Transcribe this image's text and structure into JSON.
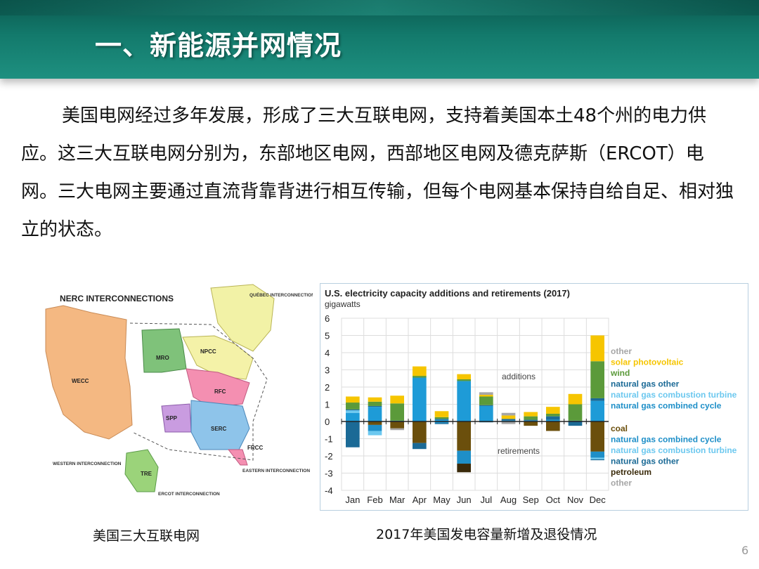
{
  "header": {
    "title": "一、新能源并网情况"
  },
  "body": {
    "paragraph": "美国电网经过多年发展，形成了三大互联电网，支持着美国本土48个州的电力供应。这三大互联电网分别为，东部地区电网，西部地区电网及德克萨斯（ERCOT）电网。三大电网主要通过直流背靠背进行相互传输，但每个电网基本保持自给自足、相对独立的状态。"
  },
  "map": {
    "title": "NERC INTERCONNECTIONS",
    "regions": [
      "WECC",
      "MRO",
      "NPCC",
      "RFC",
      "SPP",
      "SERC",
      "FRCC",
      "TRE"
    ],
    "labels": {
      "quebec": "QUÉBEC INTERCONNECTION",
      "western": "WESTERN INTERCONNECTION",
      "eastern": "EASTERN INTERCONNECTION",
      "ercot": "ERCOT INTERCONNECTION"
    },
    "caption": "美国三大互联电网"
  },
  "chart_caption": "2017年美国发电容量新增及退役情况",
  "page_number": "6",
  "chart_data": {
    "type": "bar",
    "stacked": true,
    "title": "U.S. electricity capacity additions and retirements (2017)",
    "ylabel": "gigawatts",
    "ylim": [
      -4,
      6
    ],
    "yticks": [
      6,
      5,
      4,
      3,
      2,
      1,
      0,
      -1,
      -2,
      -3,
      -4
    ],
    "grid": true,
    "annotations": [
      "additions",
      "retirements"
    ],
    "legend_placement": "right",
    "categories": [
      "Jan",
      "Feb",
      "Mar",
      "Apr",
      "May",
      "Jun",
      "Jul",
      "Aug",
      "Sep",
      "Oct",
      "Nov",
      "Dec"
    ],
    "additions": [
      {
        "name": "natural gas combined cycle",
        "color": "#1e9bd7",
        "values": [
          0.5,
          0.85,
          0,
          2.55,
          0.1,
          2.35,
          0.9,
          0.05,
          0.05,
          0.1,
          0,
          1.2
        ]
      },
      {
        "name": "natural gas combustion turbine",
        "color": "#6cc8ef",
        "values": [
          0.15,
          0,
          0,
          0,
          0,
          0,
          0,
          0,
          0,
          0,
          0,
          0
        ]
      },
      {
        "name": "natural gas other",
        "color": "#1b6a96",
        "values": [
          0.05,
          0.05,
          0.05,
          0,
          0.05,
          0,
          0.05,
          0.1,
          0.05,
          0.2,
          0.05,
          0.15
        ]
      },
      {
        "name": "wind",
        "color": "#5b9a3a",
        "values": [
          0.4,
          0.25,
          1.0,
          0.1,
          0.1,
          0.1,
          0.5,
          0,
          0.2,
          0.15,
          0.95,
          2.15
        ]
      },
      {
        "name": "solar photovoltaic",
        "color": "#f6c500",
        "values": [
          0.35,
          0.25,
          0.45,
          0.55,
          0.35,
          0.3,
          0.1,
          0.2,
          0.25,
          0.4,
          0.6,
          1.5
        ]
      },
      {
        "name": "other",
        "color": "#a6a6a6",
        "values": [
          0,
          0,
          0,
          0,
          0,
          0,
          0.15,
          0.15,
          0,
          0,
          0,
          0
        ]
      }
    ],
    "retirements": [
      {
        "name": "coal",
        "color": "#6b4f0c",
        "values": [
          0,
          -0.2,
          -0.4,
          -1.25,
          0,
          -1.7,
          0,
          0,
          -0.25,
          -0.55,
          0,
          -1.75
        ]
      },
      {
        "name": "natural gas combined cycle",
        "color": "#1e8fc8",
        "values": [
          0,
          -0.35,
          0,
          0,
          -0.1,
          -0.75,
          0,
          0,
          0,
          0,
          0,
          -0.35
        ]
      },
      {
        "name": "natural gas combustion turbine",
        "color": "#6cc8ef",
        "values": [
          0,
          -0.25,
          0,
          0,
          0,
          0,
          0,
          0,
          0,
          0,
          0,
          -0.1
        ]
      },
      {
        "name": "natural gas other",
        "color": "#1b6a96",
        "values": [
          -1.5,
          0,
          0,
          -0.35,
          -0.05,
          0,
          -0.05,
          0,
          0,
          0,
          -0.25,
          -0.05
        ]
      },
      {
        "name": "petroleum",
        "color": "#3a2a0a",
        "values": [
          0,
          0,
          0,
          0,
          0,
          -0.5,
          0,
          0,
          0,
          0,
          0,
          0
        ]
      },
      {
        "name": "other",
        "color": "#a6a6a6",
        "values": [
          0,
          0,
          -0.1,
          0,
          0,
          0,
          0,
          -0.15,
          0,
          0,
          0,
          0
        ]
      }
    ]
  }
}
